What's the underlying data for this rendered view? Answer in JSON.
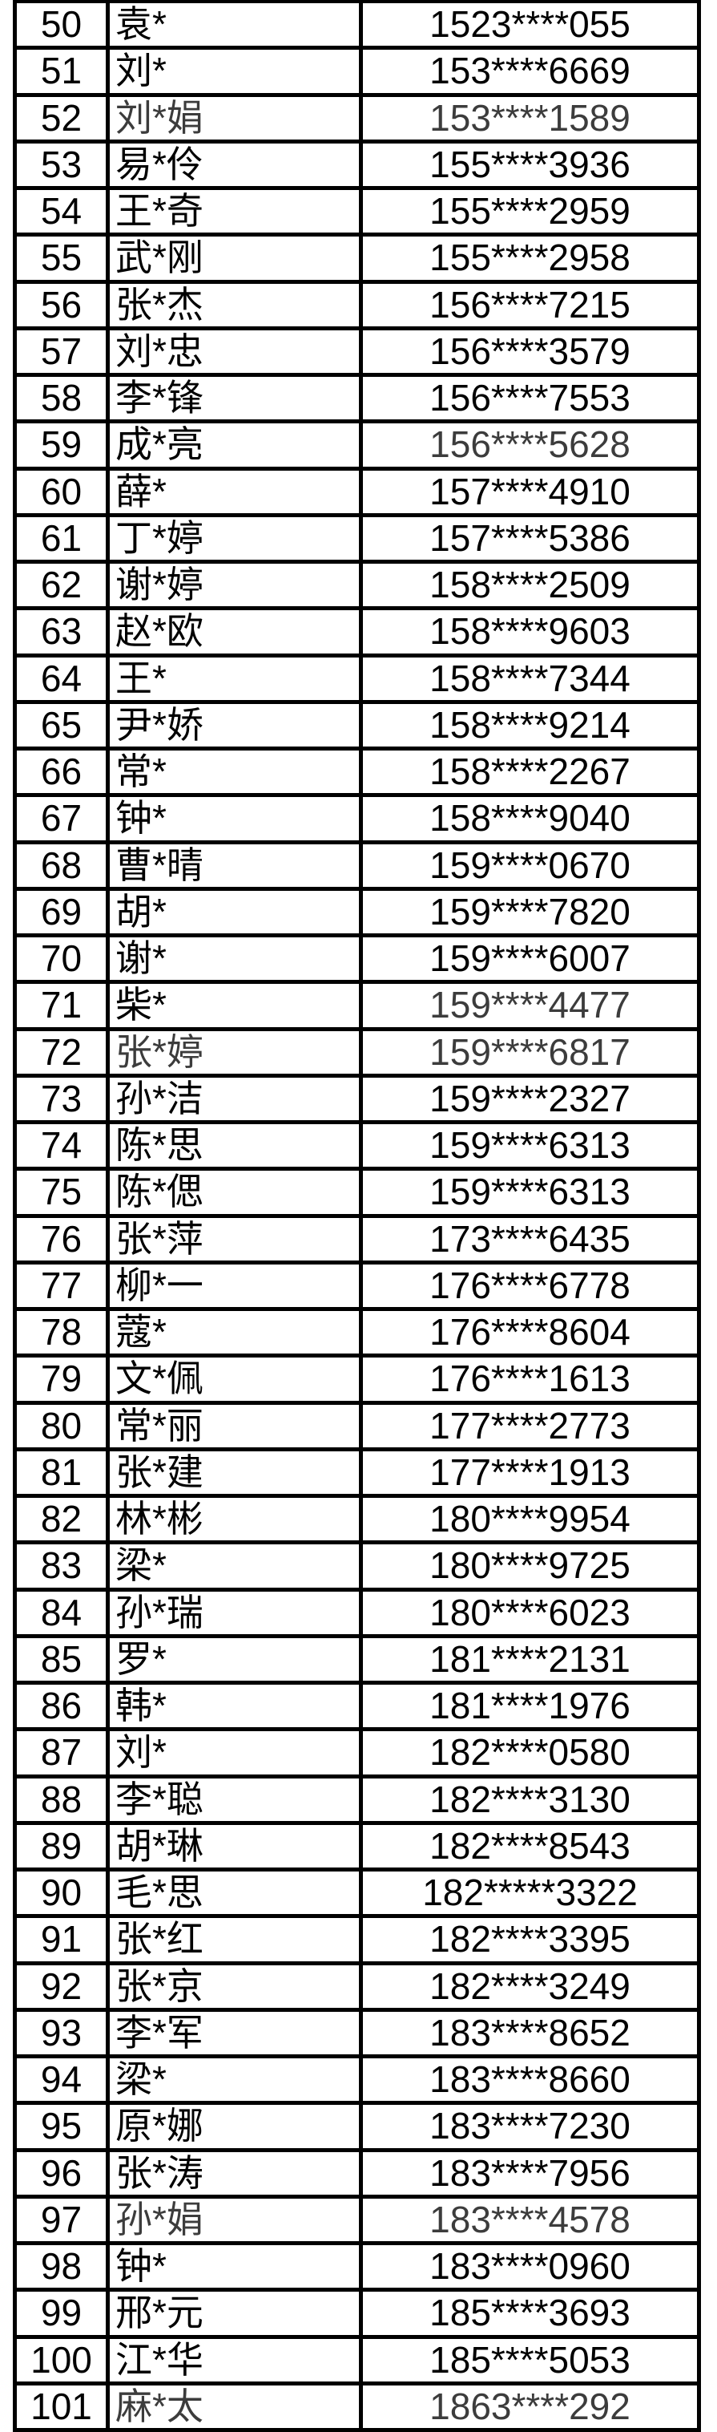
{
  "colors": {
    "text": "#000000",
    "dim_text": "#3c3c3c",
    "border": "#000000",
    "background": "#ffffff"
  },
  "table": {
    "columns": [
      "index",
      "name",
      "phone"
    ],
    "rows": [
      {
        "index": "50",
        "name": "袁*",
        "phone": "1523****055"
      },
      {
        "index": "51",
        "name": "刘*",
        "phone": "153****6669"
      },
      {
        "index": "52",
        "name": "刘*娟",
        "phone": "153****1589",
        "name_dim": true,
        "phone_dim": true
      },
      {
        "index": "53",
        "name": "易*伶",
        "phone": "155****3936"
      },
      {
        "index": "54",
        "name": "王*奇",
        "phone": "155****2959"
      },
      {
        "index": "55",
        "name": "武*刚",
        "phone": "155****2958"
      },
      {
        "index": "56",
        "name": "张*杰",
        "phone": "156****7215"
      },
      {
        "index": "57",
        "name": "刘*忠",
        "phone": "156****3579"
      },
      {
        "index": "58",
        "name": "李*锋",
        "phone": "156****7553"
      },
      {
        "index": "59",
        "name": "成*亮",
        "phone": "156****5628",
        "phone_dim": true
      },
      {
        "index": "60",
        "name": "薛*",
        "phone": "157****4910"
      },
      {
        "index": "61",
        "name": "丁*婷",
        "phone": "157****5386"
      },
      {
        "index": "62",
        "name": "谢*婷",
        "phone": "158****2509"
      },
      {
        "index": "63",
        "name": "赵*欧",
        "phone": "158****9603"
      },
      {
        "index": "64",
        "name": "王*",
        "phone": "158****7344"
      },
      {
        "index": "65",
        "name": "尹*娇",
        "phone": "158****9214"
      },
      {
        "index": "66",
        "name": "常*",
        "phone": "158****2267"
      },
      {
        "index": "67",
        "name": "钟*",
        "phone": "158****9040"
      },
      {
        "index": "68",
        "name": "曹*晴",
        "phone": "159****0670"
      },
      {
        "index": "69",
        "name": "胡*",
        "phone": "159****7820"
      },
      {
        "index": "70",
        "name": "谢*",
        "phone": "159****6007"
      },
      {
        "index": "71",
        "name": "柴*",
        "phone": "159****4477",
        "phone_dim": true
      },
      {
        "index": "72",
        "name": "张*婷",
        "phone": "159****6817",
        "name_dim": true,
        "phone_dim": true
      },
      {
        "index": "73",
        "name": "孙*洁",
        "phone": "159****2327"
      },
      {
        "index": "74",
        "name": "陈*思",
        "phone": "159****6313"
      },
      {
        "index": "75",
        "name": "陈*偲",
        "phone": "159****6313"
      },
      {
        "index": "76",
        "name": "张*萍",
        "phone": "173****6435"
      },
      {
        "index": "77",
        "name": "柳*一",
        "phone": "176****6778"
      },
      {
        "index": "78",
        "name": "蔻*",
        "phone": "176****8604"
      },
      {
        "index": "79",
        "name": "文*佩",
        "phone": "176****1613"
      },
      {
        "index": "80",
        "name": "常*丽",
        "phone": "177****2773"
      },
      {
        "index": "81",
        "name": "张*建",
        "phone": "177****1913"
      },
      {
        "index": "82",
        "name": "林*彬",
        "phone": "180****9954"
      },
      {
        "index": "83",
        "name": "梁*",
        "phone": "180****9725"
      },
      {
        "index": "84",
        "name": "孙*瑞",
        "phone": "180****6023"
      },
      {
        "index": "85",
        "name": "罗*",
        "phone": "181****2131"
      },
      {
        "index": "86",
        "name": "韩*",
        "phone": "181****1976"
      },
      {
        "index": "87",
        "name": "刘*",
        "phone": "182****0580"
      },
      {
        "index": "88",
        "name": "李*聪",
        "phone": "182****3130"
      },
      {
        "index": "89",
        "name": "胡*琳",
        "phone": "182****8543"
      },
      {
        "index": "90",
        "name": "毛*思",
        "phone": "182*****3322"
      },
      {
        "index": "91",
        "name": "张*红",
        "phone": "182****3395"
      },
      {
        "index": "92",
        "name": "张*京",
        "phone": "182****3249"
      },
      {
        "index": "93",
        "name": "李*军",
        "phone": "183****8652"
      },
      {
        "index": "94",
        "name": "梁*",
        "phone": "183****8660"
      },
      {
        "index": "95",
        "name": "原*娜",
        "phone": "183****7230"
      },
      {
        "index": "96",
        "name": "张*涛",
        "phone": "183****7956"
      },
      {
        "index": "97",
        "name": "孙*娟",
        "phone": "183****4578",
        "name_dim": true,
        "phone_dim": true
      },
      {
        "index": "98",
        "name": "钟*",
        "phone": "183****0960"
      },
      {
        "index": "99",
        "name": "邢*元",
        "phone": "185****3693"
      },
      {
        "index": "100",
        "name": "江*华",
        "phone": "185****5053"
      },
      {
        "index": "101",
        "name": "麻*太",
        "phone": "1863****292",
        "name_dim": true,
        "phone_dim": true
      }
    ]
  }
}
